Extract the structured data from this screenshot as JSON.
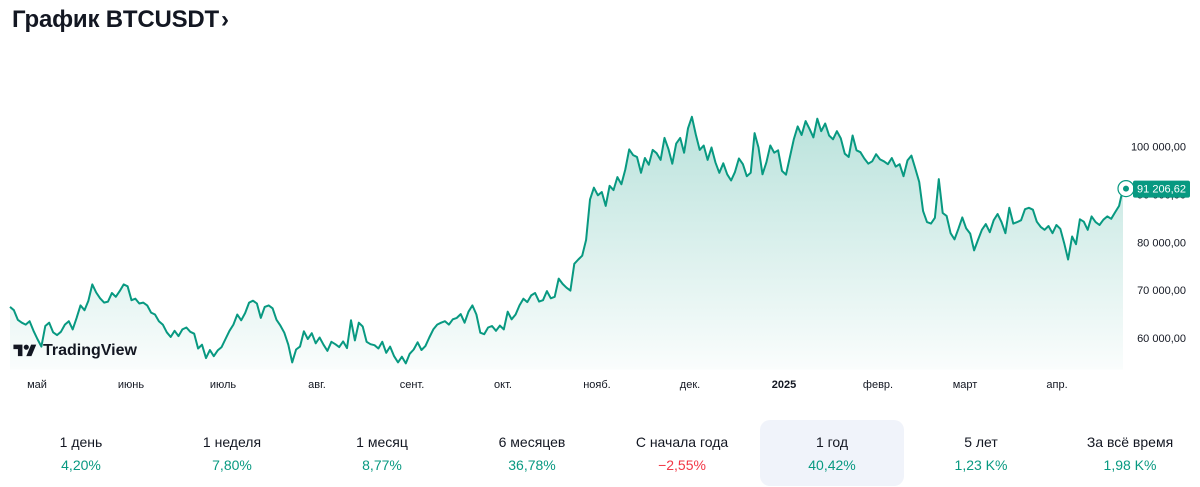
{
  "header": {
    "title": "График BTCUSDT",
    "chevron": "›"
  },
  "chart_data": {
    "type": "area",
    "symbol": "BTCUSDT",
    "x_tick_labels": [
      "май",
      "июнь",
      "июль",
      "авг.",
      "сент.",
      "окт.",
      "нояб.",
      "дек.",
      "2025",
      "февр.",
      "март",
      "апр."
    ],
    "y_tick_labels": [
      "100 000,00",
      "90 000,00",
      "80 000,00",
      "70 000,00",
      "60 000,00"
    ],
    "y_ticks": [
      100000,
      90000,
      80000,
      70000,
      60000
    ],
    "y_range": [
      54000,
      113000
    ],
    "last_value": 91206.62,
    "last_value_label": "91 206,62",
    "color": "#089981",
    "series": [
      {
        "values": [
          66500,
          65800,
          63800,
          63200,
          62800,
          63500,
          61500,
          59800,
          58200,
          62500,
          63200,
          61200,
          60600,
          61300,
          62800,
          63500,
          61800,
          64200,
          66800,
          65800,
          67800,
          71200,
          69500,
          68300,
          67400,
          67600,
          69400,
          68600,
          69800,
          71200,
          70800,
          67900,
          68200,
          67200,
          67400,
          66800,
          65300,
          64900,
          63500,
          62800,
          61200,
          60200,
          61500,
          60400,
          61800,
          62200,
          61300,
          60900,
          57800,
          58600,
          55800,
          57500,
          56200,
          57400,
          58100,
          59800,
          61500,
          62800,
          64900,
          63700,
          65200,
          67400,
          67800,
          67200,
          64200,
          66500,
          66800,
          66200,
          63800,
          62600,
          61100,
          58600,
          54900,
          57600,
          58200,
          61400,
          59800,
          61000,
          58900,
          60100,
          58600,
          57300,
          59200,
          58700,
          58100,
          59300,
          57900,
          63700,
          59500,
          63200,
          62400,
          59200,
          58700,
          58500,
          57800,
          59200,
          56900,
          58200,
          56200,
          54900,
          56100,
          54700,
          56700,
          57600,
          59100,
          57500,
          58300,
          60100,
          61800,
          62800,
          63200,
          63500,
          62800,
          63900,
          64200,
          65000,
          63200,
          65500,
          66800,
          64900,
          61100,
          60800,
          62200,
          62500,
          61500,
          62600,
          61800,
          65500,
          63900,
          64900,
          66800,
          68200,
          67500,
          68900,
          69400,
          67600,
          67900,
          69800,
          68300,
          68600,
          72400,
          71300,
          70500,
          69900,
          75500,
          76400,
          77200,
          80500,
          88900,
          91400,
          89800,
          90500,
          87600,
          91800,
          90900,
          93600,
          92100,
          95200,
          99400,
          98200,
          97800,
          94500,
          97600,
          96200,
          99300,
          98600,
          97200,
          101800,
          99500,
          96400,
          100600,
          101800,
          98700,
          103800,
          106200,
          102500,
          99300,
          100200,
          97200,
          99800,
          96700,
          94500,
          96500,
          94200,
          92900,
          94700,
          97500,
          96300,
          93800,
          94500,
          102800,
          99800,
          94200,
          96700,
          100200,
          98700,
          99200,
          94900,
          94100,
          97800,
          101500,
          104200,
          102400,
          105300,
          103700,
          101900,
          105800,
          103200,
          104800,
          102300,
          101500,
          103200,
          101700,
          98500,
          97800,
          102300,
          99200,
          98800,
          97500,
          96400,
          96900,
          98400,
          97300,
          96900,
          96300,
          97600,
          95800,
          96300,
          93800,
          97100,
          98100,
          95400,
          92600,
          86500,
          84200,
          83900,
          85100,
          93200,
          86100,
          85500,
          81900,
          80600,
          82800,
          85200,
          82900,
          81800,
          78300,
          80500,
          82600,
          83800,
          82100,
          84600,
          85900,
          84200,
          81900,
          87200,
          83900,
          84200,
          84600,
          86900,
          87200,
          86800,
          84300,
          83200,
          82600,
          83400,
          81900,
          83600,
          82800,
          79800,
          76400,
          81200,
          79600,
          84800,
          84300,
          82600,
          85400,
          84200,
          83600,
          84700,
          85400,
          84900,
          86300,
          87600,
          91206.62
        ]
      }
    ]
  },
  "watermark": {
    "logo_text": "TradingView"
  },
  "periods": [
    {
      "label": "1 день",
      "value": "4,20%",
      "trend": "up"
    },
    {
      "label": "1 неделя",
      "value": "7,80%",
      "trend": "up"
    },
    {
      "label": "1 месяц",
      "value": "8,77%",
      "trend": "up"
    },
    {
      "label": "6 месяцев",
      "value": "36,78%",
      "trend": "up"
    },
    {
      "label": "С начала года",
      "value": "−2,55%",
      "trend": "down"
    },
    {
      "label": "1 год",
      "value": "40,42%",
      "trend": "up",
      "selected": true
    },
    {
      "label": "5 лет",
      "value": "1,23 K%",
      "trend": "up"
    },
    {
      "label": "За всё время",
      "value": "1,98 K%",
      "trend": "up"
    }
  ]
}
